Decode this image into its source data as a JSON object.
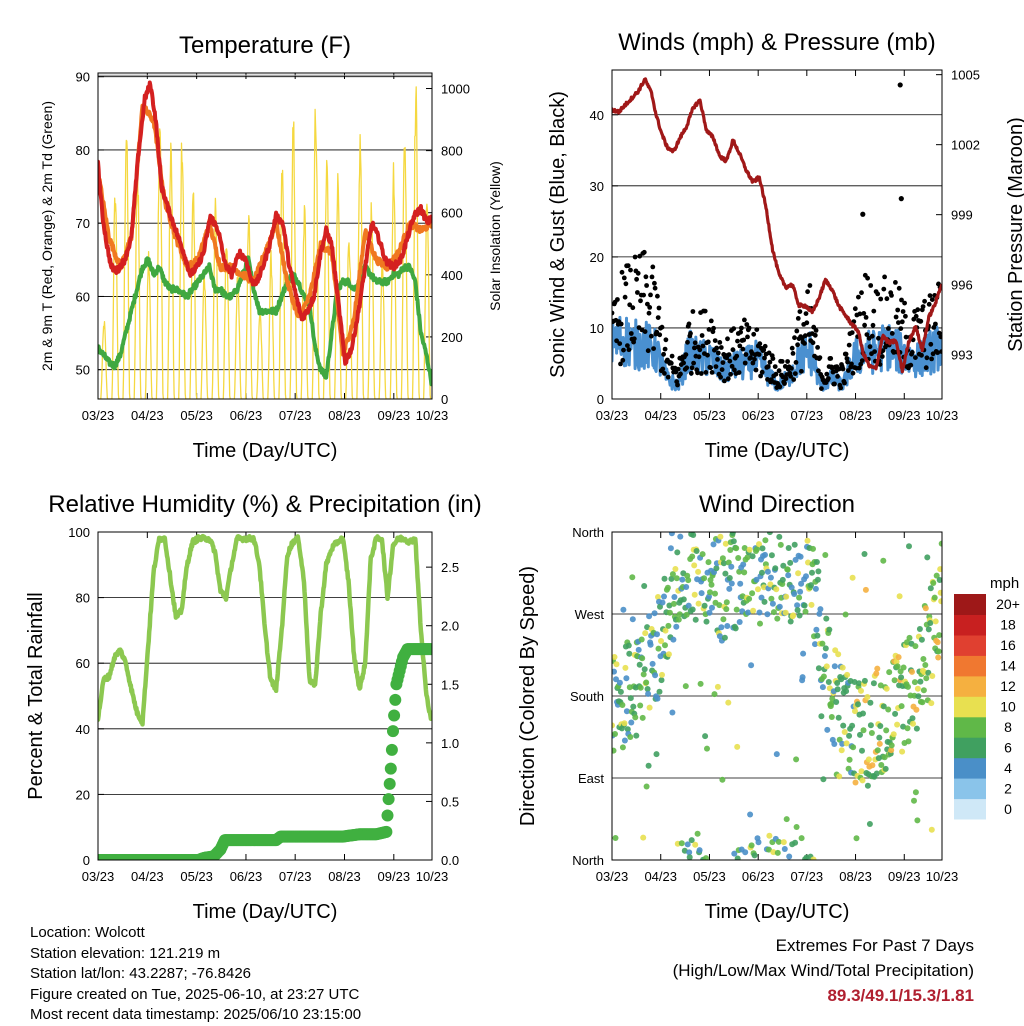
{
  "chart_data": [
    {
      "type": "line",
      "title": "Temperature (F)",
      "xlabel": "Time (Day/UTC)",
      "ylabel": "2m & 9m T (Red, Orange) & 2m Td (Green)",
      "ylabel_right": "Solar Insolation (Yellow)",
      "x_ticks": [
        "03/23",
        "04/23",
        "05/23",
        "06/23",
        "07/23",
        "08/23",
        "09/23",
        "10/23"
      ],
      "y_ticks": [
        "50",
        "60",
        "70",
        "80",
        "90"
      ],
      "y2_ticks": [
        "0",
        "200",
        "400",
        "600",
        "800",
        "1000"
      ],
      "ylim": [
        46,
        90.5
      ],
      "y2lim": [
        0,
        1050
      ],
      "colors": {
        "t2m": "#d42020",
        "t9m": "#f07820",
        "td": "#40a840",
        "solar": "#f5d840"
      },
      "series": [
        {
          "name": "2m T",
          "x": [
            0,
            0.4,
            0.8,
            1.2,
            1.7,
            2.4,
            3.0,
            3.6,
            4.2,
            4.7,
            5.2,
            5.7,
            6.3,
            7.0,
            7.7,
            8.3,
            8.9,
            9.5,
            10.1,
            10.8,
            11.4,
            12.0,
            12.7,
            13.3,
            13.8,
            14.3,
            14.8,
            15.4,
            16.0,
            16.6,
            17.2,
            17.8,
            18.3,
            18.8,
            19.4,
            20.0,
            20.5,
            21.0,
            21.6,
            22.2,
            22.8,
            23.4,
            24.0,
            24.6,
            25.2,
            25.8,
            26.5,
            27.2,
            27.8,
            28.4,
            29.0,
            29.6,
            30.0
          ],
          "values": [
            78,
            71,
            67,
            64,
            63.5,
            65,
            68,
            79,
            87,
            89,
            84,
            75,
            72,
            69,
            66,
            63,
            64,
            66,
            71,
            69,
            64.5,
            63,
            66,
            65,
            62,
            62,
            64,
            67,
            71,
            70,
            64,
            60,
            57,
            58,
            60,
            66,
            69,
            67,
            59,
            51,
            53,
            58,
            64,
            70,
            68,
            65,
            64,
            65,
            68,
            71,
            72,
            70,
            71
          ]
        },
        {
          "name": "9m T",
          "x": [
            0,
            1,
            2,
            3,
            4,
            5,
            6,
            7,
            8,
            9,
            10,
            11,
            12,
            13,
            14,
            15,
            16,
            17,
            18,
            19,
            20,
            21,
            22,
            23,
            24,
            25,
            26,
            27,
            28,
            29,
            30
          ],
          "values": [
            77,
            68,
            64,
            68,
            86,
            84,
            73,
            68,
            64,
            65,
            70,
            64,
            64,
            63,
            62,
            66,
            70,
            62,
            57,
            60,
            67,
            66,
            52,
            57,
            69,
            65,
            64,
            66,
            70,
            69,
            70
          ]
        },
        {
          "name": "2m Td",
          "x": [
            0,
            0.5,
            1,
            1.5,
            2,
            2.5,
            3,
            3.5,
            4,
            4.5,
            5,
            5.5,
            6,
            6.5,
            7,
            7.5,
            8,
            8.5,
            9,
            9.5,
            10,
            10.5,
            11,
            11.5,
            12,
            12.5,
            13,
            13.5,
            14,
            14.5,
            15,
            15.5,
            16,
            16.5,
            17,
            17.5,
            18,
            18.5,
            19,
            19.5,
            20,
            20.5,
            21,
            21.5,
            22,
            22.5,
            23,
            23.5,
            24,
            24.5,
            25,
            25.5,
            26,
            26.5,
            27,
            27.5,
            28,
            28.5,
            29,
            29.5,
            30
          ],
          "values": [
            53,
            52,
            51,
            50.5,
            52,
            55,
            58,
            61,
            64,
            65,
            63,
            64,
            62,
            61,
            61,
            60.5,
            60,
            61,
            62,
            63,
            64,
            61,
            61,
            60,
            60,
            61,
            63,
            65,
            61,
            58,
            58,
            58,
            58,
            60,
            62,
            63,
            62,
            60,
            59,
            53,
            50,
            49,
            55,
            61,
            62,
            62,
            61,
            62,
            64,
            63,
            62,
            62,
            62,
            63,
            63,
            64,
            64,
            62,
            55,
            52,
            48
          ]
        },
        {
          "name": "Solar Insolation",
          "axis": "right",
          "daily_peaks": [
            260,
            700,
            920,
            780,
            500,
            950,
            850,
            880,
            680,
            420,
            650,
            560,
            420,
            620,
            300,
            480,
            780,
            930,
            640,
            1000,
            820,
            730,
            560,
            880,
            640,
            470,
            780,
            900,
            1040,
            680
          ]
        }
      ]
    },
    {
      "type": "line",
      "title": "Winds (mph) & Pressure (mb)",
      "xlabel": "Time (Day/UTC)",
      "ylabel": "Sonic Wind & Gust (Blue, Black)",
      "ylabel_right": "Station Pressure (Maroon)",
      "x_ticks": [
        "03/23",
        "04/23",
        "05/23",
        "06/23",
        "07/23",
        "08/23",
        "09/23",
        "10/23"
      ],
      "y_ticks": [
        "0",
        "10",
        "20",
        "30",
        "40"
      ],
      "y2_ticks": [
        "993",
        "996",
        "999",
        "1002",
        "1005"
      ],
      "ylim": [
        0,
        46.3
      ],
      "y2lim": [
        991.1,
        1005.2
      ],
      "colors": {
        "wind": "#4a90d0",
        "gust": "#000000",
        "pressure": "#a01818"
      },
      "series": [
        {
          "name": "Station Pressure",
          "axis": "right",
          "x": [
            0,
            0.6,
            1.2,
            1.8,
            2.4,
            3.0,
            3.6,
            4.0,
            4.5,
            5.0,
            5.6,
            6.2,
            6.8,
            7.4,
            8.0,
            8.6,
            9.2,
            9.8,
            10.4,
            11.0,
            11.6,
            12.2,
            12.8,
            13.4,
            14.0,
            14.6,
            15.2,
            15.8,
            16.4,
            17.0,
            17.6,
            18.2,
            18.8,
            19.4,
            20.0,
            20.6,
            21.2,
            21.8,
            22.4,
            22.8,
            23.4,
            24.0,
            24.6,
            25.2,
            25.8,
            26.4,
            27.0,
            27.6,
            28.2,
            28.8,
            29.4,
            30.0
          ],
          "values": [
            1003.5,
            1003.4,
            1003.7,
            1004.0,
            1004.3,
            1004.8,
            1004.2,
            1003.3,
            1002.5,
            1001.9,
            1001.7,
            1002.3,
            1002.8,
            1003.6,
            1003.9,
            1002.6,
            1002.3,
            1001.5,
            1001.3,
            1002.2,
            1001.6,
            1000.9,
            1000.4,
            1000.6,
            999.3,
            997.5,
            996.4,
            995.9,
            996.0,
            995.1,
            995.1,
            994.8,
            995.4,
            996.2,
            995.8,
            995.1,
            994.7,
            994.3,
            994.0,
            993.1,
            992.5,
            992.4,
            993.8,
            993.5,
            993.6,
            992.3,
            993.6,
            994.2,
            993.2,
            994.6,
            995.2,
            996.1
          ]
        },
        {
          "name": "Sonic Wind",
          "x": [
            0,
            1,
            2,
            3,
            4,
            5,
            6,
            7,
            8,
            9,
            10,
            11,
            12,
            13,
            14,
            15,
            16,
            17,
            18,
            19,
            20,
            21,
            22,
            23,
            24,
            25,
            26,
            27,
            28,
            29,
            30
          ],
          "values": [
            8,
            9,
            8,
            8,
            7,
            3,
            2,
            7,
            6,
            6,
            4,
            5,
            5,
            6,
            4,
            2,
            3,
            6,
            7,
            2,
            3,
            2,
            6,
            7,
            7,
            8,
            7,
            6,
            6,
            7,
            8
          ]
        },
        {
          "name": "Sonic Gust",
          "x": [
            0,
            1,
            2,
            3,
            4,
            5,
            6,
            7,
            8,
            9,
            10,
            11,
            12,
            13,
            14,
            15,
            16,
            17,
            18,
            19,
            20,
            21,
            22,
            23,
            24,
            25,
            26,
            27,
            28,
            29,
            30
          ],
          "values": [
            10,
            15,
            16,
            17,
            14,
            6,
            4,
            10,
            10,
            11,
            7,
            8,
            9,
            8,
            7,
            4,
            5,
            10,
            13,
            4,
            5,
            4,
            10,
            15,
            13,
            14,
            13,
            10,
            11,
            12,
            14
          ],
          "outliers": [
            {
              "x": 26.2,
              "y": 44.2
            },
            {
              "x": 26.3,
              "y": 28.2
            },
            {
              "x": 22.8,
              "y": 26
            }
          ]
        }
      ]
    },
    {
      "type": "line",
      "title": "Relative Humidity (%) & Precipitation (in)",
      "xlabel": "Time (Day/UTC)",
      "ylabel": "Percent & Total Rainfall",
      "x_ticks": [
        "03/23",
        "04/23",
        "05/23",
        "06/23",
        "07/23",
        "08/23",
        "09/23",
        "10/23"
      ],
      "y_ticks": [
        "0",
        "20",
        "40",
        "60",
        "80",
        "100"
      ],
      "y2_ticks": [
        "0.0",
        "0.5",
        "1.0",
        "1.5",
        "2.0",
        "2.5"
      ],
      "ylim": [
        0,
        100
      ],
      "y2lim": [
        0,
        2.8
      ],
      "colors": {
        "rh": "#8cc850",
        "precip": "#40b040"
      },
      "series": [
        {
          "name": "Relative Humidity",
          "x": [
            0,
            0.5,
            1,
            1.5,
            2,
            2.5,
            3,
            3.5,
            4,
            4.5,
            5,
            5.5,
            6,
            6.5,
            7,
            7.5,
            8,
            8.5,
            9,
            9.5,
            10,
            10.5,
            11,
            11.5,
            12,
            12.5,
            13,
            13.5,
            14,
            14.5,
            15,
            15.5,
            16,
            16.5,
            17,
            17.5,
            18,
            18.5,
            19,
            19.5,
            20,
            20.5,
            21,
            21.5,
            22,
            22.5,
            23,
            23.5,
            24,
            24.5,
            25,
            25.5,
            26,
            26.5,
            27,
            27.5,
            28,
            28.5,
            29,
            29.5,
            30
          ],
          "values": [
            43,
            55,
            56,
            62,
            64,
            60,
            52,
            45,
            42,
            65,
            88,
            98,
            98,
            86,
            74,
            76,
            90,
            97,
            98,
            98,
            98,
            94,
            82,
            80,
            90,
            98,
            98,
            98,
            98,
            90,
            70,
            55,
            52,
            70,
            93,
            97,
            98,
            85,
            55,
            53,
            75,
            90,
            95,
            97,
            98,
            85,
            62,
            52,
            60,
            92,
            98,
            98,
            80,
            96,
            98,
            98,
            97,
            98,
            70,
            50,
            42
          ]
        },
        {
          "name": "Total Precipitation",
          "axis": "right",
          "x": [
            0,
            9,
            9.6,
            10.4,
            11,
            11.4,
            16,
            16.4,
            22,
            23.5,
            25,
            25.9,
            26.1,
            26.3,
            26.5,
            26.8,
            27.4,
            27.8,
            30
          ],
          "values": [
            0,
            0,
            0.02,
            0.03,
            0.09,
            0.17,
            0.17,
            0.2,
            0.2,
            0.22,
            0.22,
            0.24,
            0.52,
            0.78,
            1.1,
            1.5,
            1.73,
            1.8,
            1.8
          ]
        }
      ]
    },
    {
      "type": "scatter",
      "title": "Wind Direction",
      "xlabel": "Time (Day/UTC)",
      "ylabel": "Direction (Colored By Speed)",
      "x_ticks": [
        "03/23",
        "04/23",
        "05/23",
        "06/23",
        "07/23",
        "08/23",
        "09/23",
        "10/23"
      ],
      "y_ticks": [
        "North",
        "East",
        "South",
        "West",
        "North"
      ],
      "colorbar": {
        "title": "mph",
        "labels": [
          "0",
          "2",
          "4",
          "6",
          "8",
          "10",
          "12",
          "14",
          "16",
          "18",
          "20+"
        ],
        "colors": [
          "#cfe8f7",
          "#8ac4ea",
          "#4a8fc8",
          "#40a060",
          "#60b848",
          "#e8e050",
          "#f5b040",
          "#f07830",
          "#e04030",
          "#c82020",
          "#9e1818"
        ]
      }
    }
  ],
  "footer": {
    "location": "Location: Wolcott",
    "elevation": "Station elevation: 121.219 m",
    "latlon": "Station lat/lon: 43.2287; -76.8426",
    "created": "Figure created on Tue, 2025-06-10, at 23:27 UTC",
    "recent": "Most recent data timestamp: 2025/06/10 23:15:00"
  },
  "extremes": {
    "title": "Extremes For Past 7 Days",
    "subtitle": "(High/Low/Max Wind/Total Precipitation)",
    "values": "89.3/49.1/15.3/1.81"
  }
}
